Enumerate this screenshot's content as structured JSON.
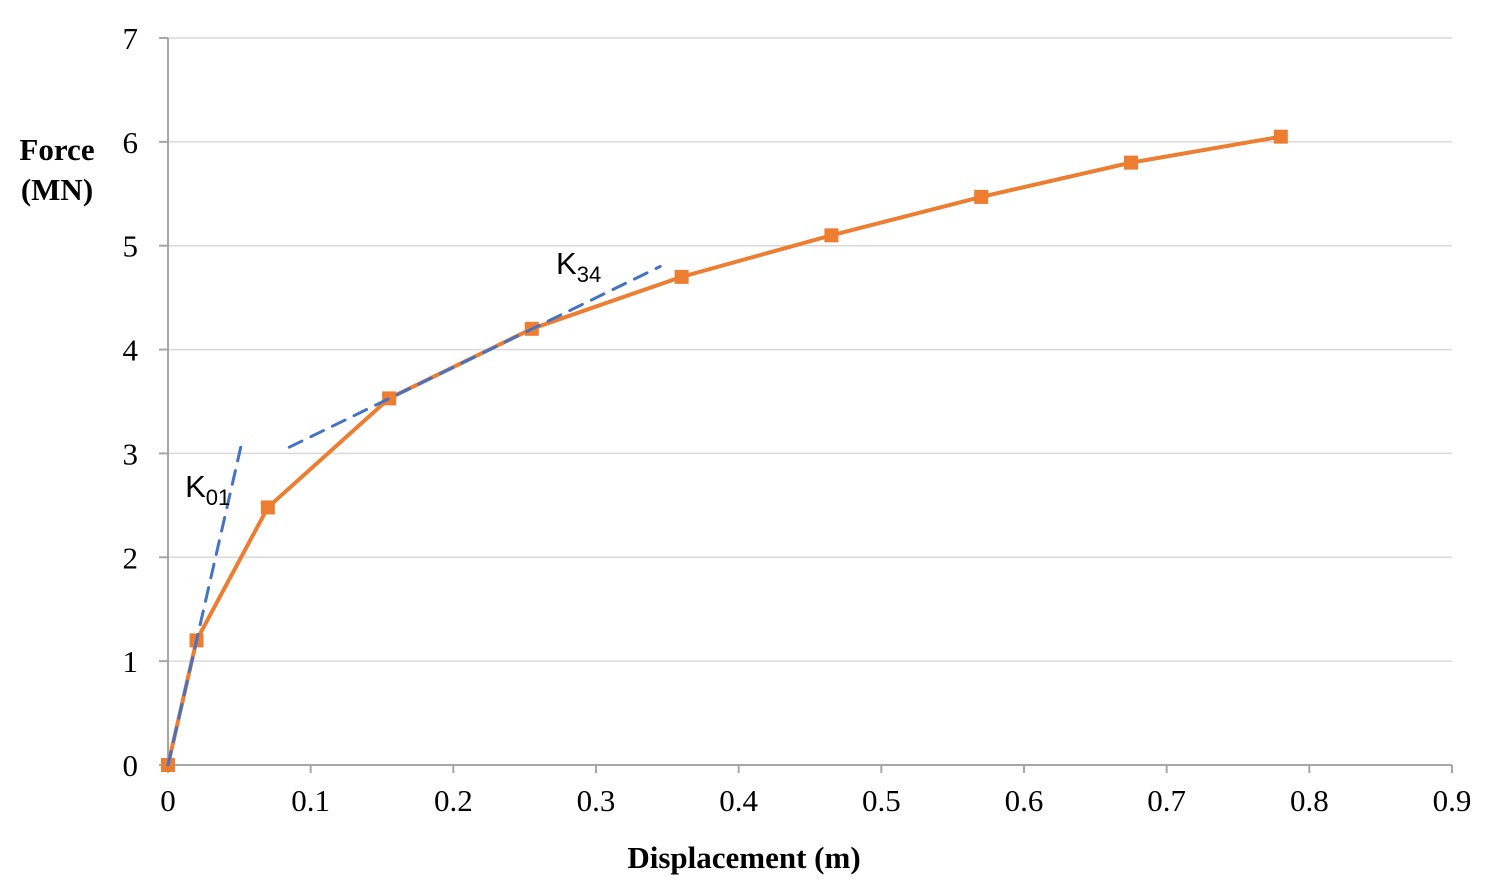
{
  "chart_data": {
    "type": "line",
    "title": "",
    "xlabel": "Displacement (m)",
    "ylabel": "Force (MN)",
    "ylabel_line1": "Force",
    "ylabel_line2": "(MN)",
    "xlim": [
      0,
      0.9
    ],
    "ylim": [
      0,
      7
    ],
    "grid": "horizontal",
    "legend": "none",
    "x_tick_values": [
      0,
      0.1,
      0.2,
      0.3,
      0.4,
      0.5,
      0.6,
      0.7,
      0.8,
      0.9
    ],
    "x_tick_labels": [
      "0",
      "0.1",
      "0.2",
      "0.3",
      "0.4",
      "0.5",
      "0.6",
      "0.7",
      "0.8",
      "0.9"
    ],
    "y_tick_values": [
      0,
      1,
      2,
      3,
      4,
      5,
      6,
      7
    ],
    "y_tick_labels": [
      "0",
      "1",
      "2",
      "3",
      "4",
      "5",
      "6",
      "7"
    ],
    "colors": {
      "curve": "#ED7D31",
      "stiffness_line": "#4472C4",
      "gridline": "#D9D9D9",
      "axis": "#A6A6A6",
      "text": "#000000"
    },
    "series": [
      {
        "name": "force-displacement-curve",
        "kind": "line-with-markers",
        "marker": "square",
        "color": "#ED7D31",
        "x": [
          0,
          0.02,
          0.07,
          0.155,
          0.255,
          0.36,
          0.465,
          0.57,
          0.675,
          0.78
        ],
        "y": [
          0,
          1.2,
          2.48,
          3.53,
          4.2,
          4.7,
          5.1,
          5.47,
          5.8,
          6.05
        ]
      },
      {
        "name": "K01-secant-line",
        "kind": "dashed-line",
        "color": "#4472C4",
        "x": [
          0,
          0.051
        ],
        "y": [
          0,
          3.06
        ]
      },
      {
        "name": "K34-secant-line",
        "kind": "dashed-line",
        "color": "#4472C4",
        "x": [
          0.085,
          0.345
        ],
        "y": [
          3.06,
          4.8
        ]
      }
    ],
    "annotations": [
      {
        "name": "K01-label",
        "base": "K",
        "sub": "01",
        "x": 0.012,
        "y": 2.58,
        "color": "#4472C4"
      },
      {
        "name": "K34-label",
        "base": "K",
        "sub": "34",
        "x": 0.272,
        "y": 4.73,
        "color": "#4472C4"
      }
    ]
  }
}
